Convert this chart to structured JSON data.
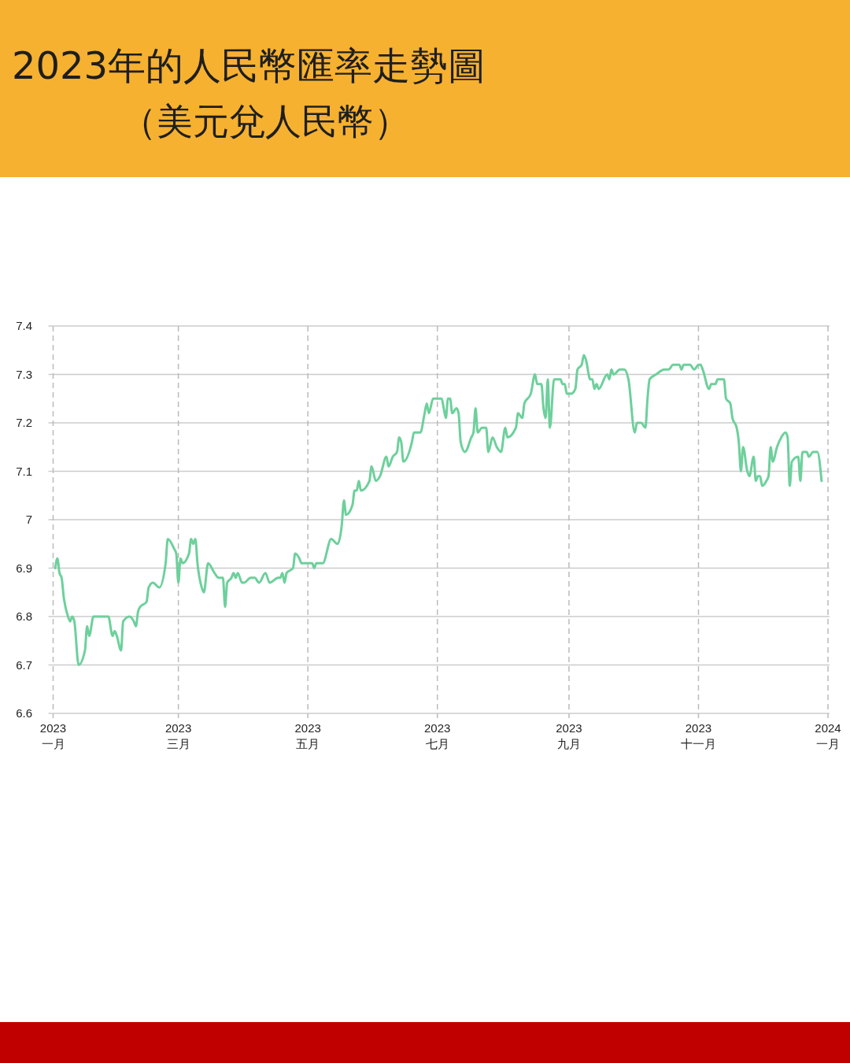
{
  "chart_data": {
    "type": "line",
    "title": "2023年的人民幣匯率走勢圖",
    "subtitle": "（美元兌人民幣）",
    "x": [
      "2023-01-02",
      "2023-01-03",
      "2023-01-04",
      "2023-01-05",
      "2023-01-06",
      "2023-01-08",
      "2023-01-09",
      "2023-01-10",
      "2023-01-11",
      "2023-01-13",
      "2023-01-16",
      "2023-01-17",
      "2023-01-18",
      "2023-01-20",
      "2023-01-24",
      "2023-01-27",
      "2023-01-29",
      "2023-01-30",
      "2023-01-31",
      "2023-02-02",
      "2023-02-03",
      "2023-02-06",
      "2023-02-08",
      "2023-02-09",
      "2023-02-10",
      "2023-02-11",
      "2023-02-14",
      "2023-02-15",
      "2023-02-17",
      "2023-02-20",
      "2023-02-23",
      "2023-02-24",
      "2023-02-27",
      "2023-02-28",
      "2023-03-01",
      "2023-03-02",
      "2023-03-03",
      "2023-03-06",
      "2023-03-07",
      "2023-03-08",
      "2023-03-09",
      "2023-03-10",
      "2023-03-12",
      "2023-03-13",
      "2023-03-15",
      "2023-03-18",
      "2023-03-20",
      "2023-03-21",
      "2023-03-22",
      "2023-03-23",
      "2023-03-24",
      "2023-03-26",
      "2023-03-27",
      "2023-03-28",
      "2023-03-29",
      "2023-03-31",
      "2023-04-01",
      "2023-04-04",
      "2023-04-06",
      "2023-04-08",
      "2023-04-11",
      "2023-04-13",
      "2023-04-17",
      "2023-04-18",
      "2023-04-19",
      "2023-04-20",
      "2023-04-21",
      "2023-04-24",
      "2023-04-25",
      "2023-04-27",
      "2023-04-28",
      "2023-05-03",
      "2023-05-04",
      "2023-05-05",
      "2023-05-08",
      "2023-05-12",
      "2023-05-15",
      "2023-05-17",
      "2023-05-18",
      "2023-05-19",
      "2023-05-22",
      "2023-05-23",
      "2023-05-24",
      "2023-05-25",
      "2023-05-26",
      "2023-05-30",
      "2023-05-31",
      "2023-06-02",
      "2023-06-04",
      "2023-06-07",
      "2023-06-08",
      "2023-06-10",
      "2023-06-12",
      "2023-06-13",
      "2023-06-14",
      "2023-06-15",
      "2023-06-19",
      "2023-06-20",
      "2023-06-23",
      "2023-06-25",
      "2023-06-26",
      "2023-06-27",
      "2023-06-29",
      "2023-07-01",
      "2023-07-03",
      "2023-07-04",
      "2023-07-05",
      "2023-07-06",
      "2023-07-07",
      "2023-07-08",
      "2023-07-10",
      "2023-07-11",
      "2023-07-12",
      "2023-07-14",
      "2023-07-17",
      "2023-07-18",
      "2023-07-19",
      "2023-07-20",
      "2023-07-22",
      "2023-07-24",
      "2023-07-25",
      "2023-07-27",
      "2023-07-29",
      "2023-07-31",
      "2023-08-02",
      "2023-08-03",
      "2023-08-07",
      "2023-08-08",
      "2023-08-10",
      "2023-08-11",
      "2023-08-14",
      "2023-08-16",
      "2023-08-17",
      "2023-08-19",
      "2023-08-20",
      "2023-08-21",
      "2023-08-22",
      "2023-08-23",
      "2023-08-25",
      "2023-08-28",
      "2023-08-29",
      "2023-08-30",
      "2023-08-31",
      "2023-09-02",
      "2023-09-04",
      "2023-09-05",
      "2023-09-07",
      "2023-09-08",
      "2023-09-09",
      "2023-09-11",
      "2023-09-12",
      "2023-09-13",
      "2023-09-14",
      "2023-09-15",
      "2023-09-19",
      "2023-09-20",
      "2023-09-21",
      "2023-09-22",
      "2023-09-25",
      "2023-09-27",
      "2023-09-29",
      "2023-10-02",
      "2023-10-03",
      "2023-10-05",
      "2023-10-07",
      "2023-10-08",
      "2023-10-09",
      "2023-10-12",
      "2023-10-16",
      "2023-10-18",
      "2023-10-20",
      "2023-10-23",
      "2023-10-24",
      "2023-10-25",
      "2023-10-28",
      "2023-10-30",
      "2023-11-01",
      "2023-11-02",
      "2023-11-03",
      "2023-11-06",
      "2023-11-07",
      "2023-11-09",
      "2023-11-10",
      "2023-11-13",
      "2023-11-14",
      "2023-11-16",
      "2023-11-17",
      "2023-11-19",
      "2023-11-20",
      "2023-11-21",
      "2023-11-22",
      "2023-11-24",
      "2023-11-25",
      "2023-11-27",
      "2023-11-28",
      "2023-11-29",
      "2023-11-30",
      "2023-12-01",
      "2023-12-03",
      "2023-12-04",
      "2023-12-05",
      "2023-12-06",
      "2023-12-08",
      "2023-12-10",
      "2023-12-12",
      "2023-12-13",
      "2023-12-14",
      "2023-12-15",
      "2023-12-18",
      "2023-12-19",
      "2023-12-20",
      "2023-12-22",
      "2023-12-23",
      "2023-12-25",
      "2023-12-26",
      "2023-12-27",
      "2023-12-29"
    ],
    "series": [
      {
        "color": "#6dd09b",
        "values": [
          6.9,
          6.92,
          6.89,
          6.88,
          6.84,
          6.8,
          6.79,
          6.8,
          6.79,
          6.7,
          6.73,
          6.78,
          6.76,
          6.8,
          6.8,
          6.8,
          6.76,
          6.77,
          6.76,
          6.73,
          6.79,
          6.8,
          6.79,
          6.78,
          6.81,
          6.82,
          6.83,
          6.86,
          6.87,
          6.86,
          6.91,
          6.96,
          6.94,
          6.93,
          6.87,
          6.92,
          6.91,
          6.93,
          6.96,
          6.95,
          6.96,
          6.91,
          6.86,
          6.85,
          6.91,
          6.89,
          6.88,
          6.88,
          6.88,
          6.82,
          6.87,
          6.88,
          6.89,
          6.88,
          6.89,
          6.87,
          6.87,
          6.88,
          6.88,
          6.87,
          6.89,
          6.87,
          6.88,
          6.88,
          6.89,
          6.87,
          6.89,
          6.9,
          6.93,
          6.92,
          6.91,
          6.91,
          6.9,
          6.91,
          6.91,
          6.96,
          6.95,
          6.99,
          7.04,
          7.01,
          7.03,
          7.06,
          7.06,
          7.08,
          7.06,
          7.08,
          7.11,
          7.08,
          7.09,
          7.13,
          7.11,
          7.13,
          7.14,
          7.17,
          7.16,
          7.12,
          7.16,
          7.18,
          7.18,
          7.22,
          7.24,
          7.22,
          7.25,
          7.25,
          7.25,
          7.23,
          7.21,
          7.25,
          7.25,
          7.22,
          7.23,
          7.22,
          7.16,
          7.14,
          7.17,
          7.18,
          7.23,
          7.18,
          7.19,
          7.19,
          7.14,
          7.17,
          7.15,
          7.14,
          7.19,
          7.17,
          7.19,
          7.22,
          7.21,
          7.24,
          7.26,
          7.3,
          7.28,
          7.28,
          7.23,
          7.21,
          7.29,
          7.19,
          7.29,
          7.29,
          7.28,
          7.28,
          7.26,
          7.26,
          7.27,
          7.31,
          7.32,
          7.34,
          7.33,
          7.29,
          7.29,
          7.27,
          7.28,
          7.27,
          7.3,
          7.29,
          7.31,
          7.3,
          7.31,
          7.31,
          7.29,
          7.18,
          7.2,
          7.2,
          7.19,
          7.25,
          7.29,
          7.3,
          7.31,
          7.31,
          7.32,
          7.32,
          7.31,
          7.32,
          7.32,
          7.31,
          7.32,
          7.32,
          7.31,
          7.27,
          7.28,
          7.28,
          7.29,
          7.29,
          7.25,
          7.24,
          7.21,
          7.19,
          7.16,
          7.1,
          7.15,
          7.1,
          7.09,
          7.13,
          7.08,
          7.09,
          7.09,
          7.07,
          7.08,
          7.09,
          7.15,
          7.12,
          7.15,
          7.17,
          7.18,
          7.17,
          7.07,
          7.12,
          7.13,
          7.08,
          7.14,
          7.14,
          7.13,
          7.14,
          7.14,
          7.14,
          7.08
        ]
      }
    ],
    "xlim": [
      "2023-01-01",
      "2024-01-01"
    ],
    "xticks": [
      {
        "value": "2023-01-01",
        "label": "2023\n一月"
      },
      {
        "value": "2023-03-01",
        "label": "2023\n三月"
      },
      {
        "value": "2023-05-01",
        "label": "2023\n五月"
      },
      {
        "value": "2023-07-01",
        "label": "2023\n七月"
      },
      {
        "value": "2023-09-01",
        "label": "2023\n九月"
      },
      {
        "value": "2023-11-01",
        "label": "2023\n十一月"
      },
      {
        "value": "2024-01-01",
        "label": "2024\n一月"
      }
    ],
    "ylim": [
      6.6,
      7.4
    ],
    "yticks": [
      6.6,
      6.7,
      6.8,
      6.9,
      7,
      7.1,
      7.2,
      7.3,
      7.4
    ],
    "grid": true
  }
}
